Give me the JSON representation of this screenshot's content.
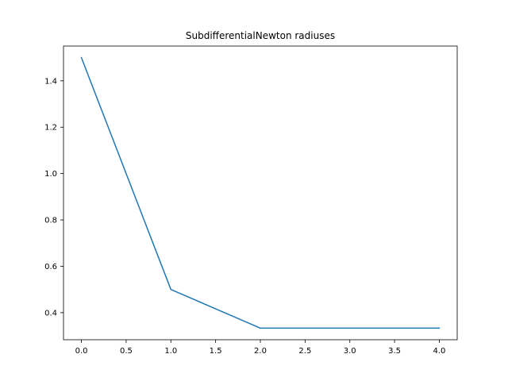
{
  "chart_data": {
    "type": "line",
    "title": "SubdifferentialNewton radiuses",
    "xlabel": "",
    "ylabel": "",
    "xlim": [
      -0.2,
      4.2
    ],
    "ylim": [
      0.2833,
      1.55
    ],
    "xticks": [
      0.0,
      0.5,
      1.0,
      1.5,
      2.0,
      2.5,
      3.0,
      3.5,
      4.0
    ],
    "xtick_labels": [
      "0.0",
      "0.5",
      "1.0",
      "1.5",
      "2.0",
      "2.5",
      "3.0",
      "3.5",
      "4.0"
    ],
    "yticks": [
      0.4,
      0.6,
      0.8,
      1.0,
      1.2,
      1.4
    ],
    "ytick_labels": [
      "0.4",
      "0.6",
      "0.8",
      "1.0",
      "1.2",
      "1.4"
    ],
    "grid": false,
    "series": [
      {
        "x": [
          0,
          1,
          2,
          3,
          4
        ],
        "values": [
          1.5,
          0.5,
          0.3333,
          0.3333,
          0.3333
        ],
        "color": "#1f77b4"
      }
    ]
  }
}
